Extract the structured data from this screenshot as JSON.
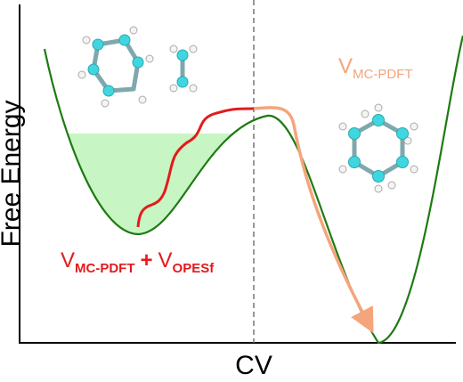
{
  "axes": {
    "y_label": "Free Energy",
    "x_label": "CV"
  },
  "labels": {
    "biased": {
      "v1": "V",
      "sub1": "MC-PDFT",
      "plus": "+",
      "v2": "V",
      "sub2": "OPESf"
    },
    "unbiased": {
      "v": "V",
      "sub": "MC-PDFT"
    }
  }
}
